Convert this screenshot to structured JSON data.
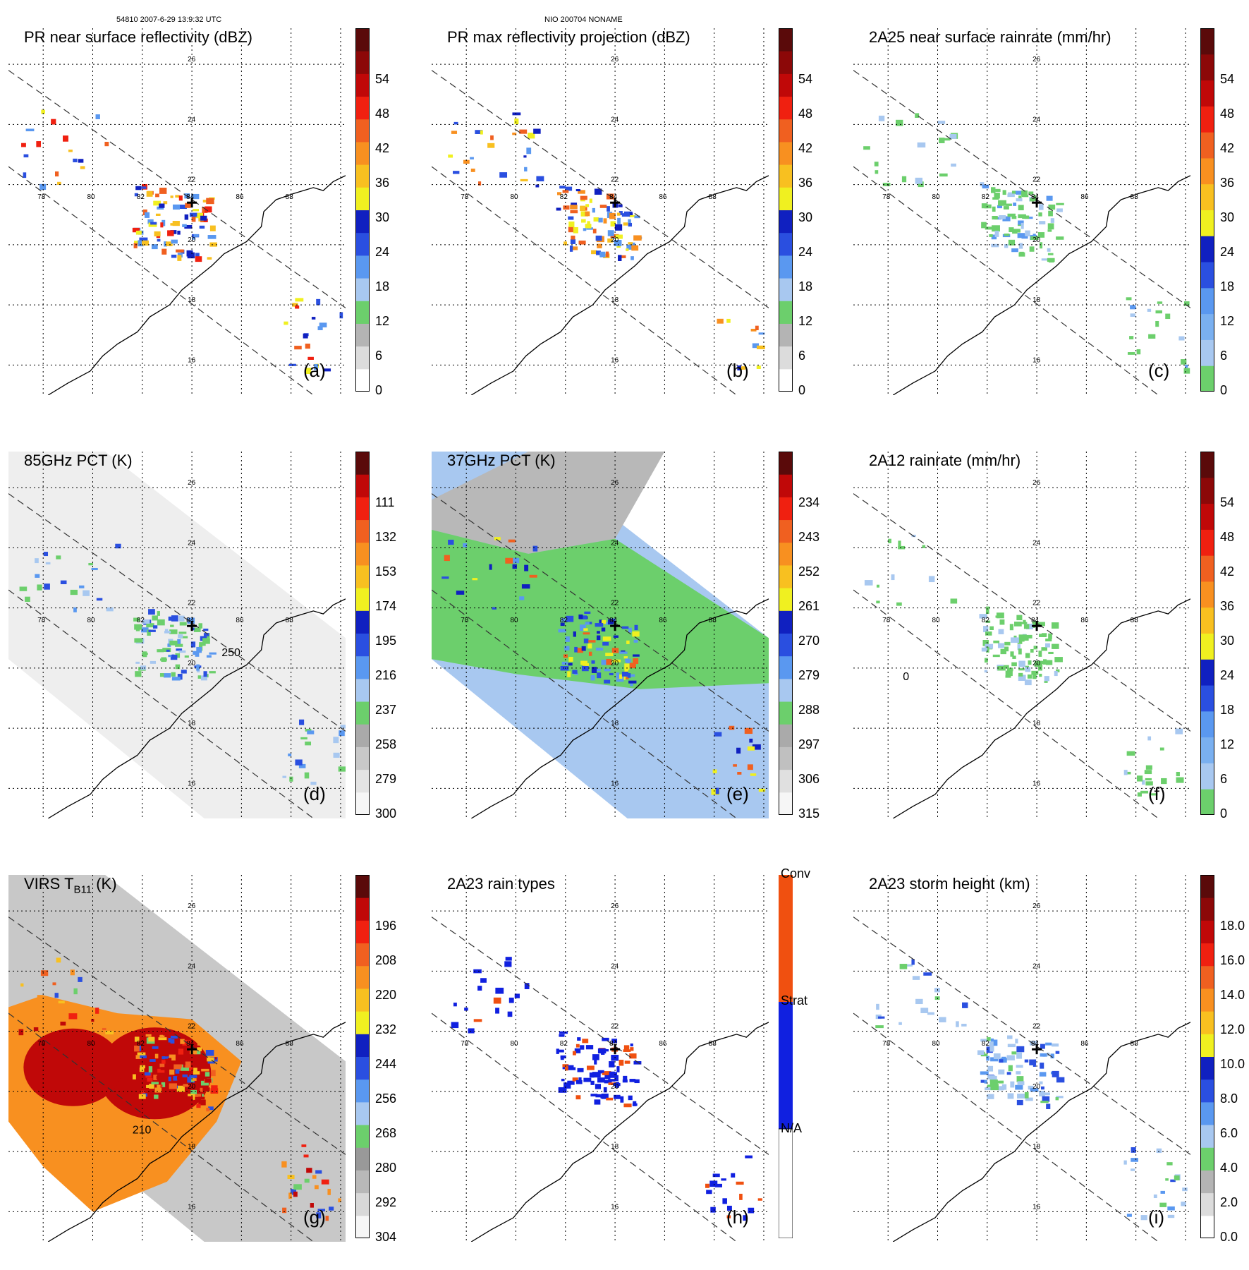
{
  "header": {
    "left": "54810 2007-6-29 13:9:32 UTC",
    "center": "NIO 200704 NONAME"
  },
  "chart_data": [
    {
      "id": "a",
      "type": "heatmap",
      "label": "(a)",
      "title": "PR near surface reflectivity (dBZ)",
      "lon_ticks": [
        "78",
        "80",
        "82",
        "84",
        "86",
        "88"
      ],
      "lat_ticks": [
        "26",
        "24",
        "22",
        "20",
        "18",
        "16"
      ],
      "colorbar": {
        "kind": "numeric",
        "ticks": [
          "0",
          "6",
          "12",
          "18",
          "24",
          "30",
          "36",
          "42",
          "48",
          "54"
        ],
        "range": [
          0,
          60
        ],
        "colors": [
          "#ffffff",
          "#dcdcdc",
          "#b4b4b4",
          "#6ccf6c",
          "#a8c8f0",
          "#5a98f0",
          "#2a4fe0",
          "#1020c0",
          "#f0f020",
          "#f8c020",
          "#f89020",
          "#f06020",
          "#f02010",
          "#c00808",
          "#8c0808",
          "#5a0a0a"
        ]
      },
      "cell_colors": [
        "#2a4fe0",
        "#5a98f0",
        "#f8c020",
        "#f0f020",
        "#f06020",
        "#1020c0",
        "#f02010"
      ]
    },
    {
      "id": "b",
      "type": "heatmap",
      "label": "(b)",
      "title": "PR max reflectivity projection (dBZ)",
      "lon_ticks": [
        "78",
        "80",
        "82",
        "84",
        "86",
        "88"
      ],
      "lat_ticks": [
        "26",
        "24",
        "22",
        "20",
        "18",
        "16"
      ],
      "colorbar": {
        "kind": "numeric",
        "ticks": [
          "0",
          "6",
          "12",
          "18",
          "24",
          "30",
          "36",
          "42",
          "48",
          "54"
        ],
        "range": [
          0,
          60
        ],
        "colors": [
          "#ffffff",
          "#dcdcdc",
          "#b4b4b4",
          "#6ccf6c",
          "#a8c8f0",
          "#5a98f0",
          "#2a4fe0",
          "#1020c0",
          "#f0f020",
          "#f8c020",
          "#f89020",
          "#f06020",
          "#f02010",
          "#c00808",
          "#8c0808",
          "#5a0a0a"
        ]
      },
      "cell_colors": [
        "#2a4fe0",
        "#f8c020",
        "#f89020",
        "#5a98f0",
        "#f0f020",
        "#f06020",
        "#1020c0"
      ]
    },
    {
      "id": "c",
      "type": "heatmap",
      "label": "(c)",
      "title": "2A25 near surface rainrate (mm/hr)",
      "lon_ticks": [
        "78",
        "80",
        "82",
        "84",
        "86",
        "88"
      ],
      "lat_ticks": [
        "26",
        "24",
        "22",
        "20",
        "18",
        "16"
      ],
      "colorbar": {
        "kind": "numeric",
        "ticks": [
          "0",
          "6",
          "12",
          "18",
          "24",
          "30",
          "36",
          "42",
          "48",
          "54"
        ],
        "range": [
          0,
          60
        ],
        "colors": [
          "#6ccf6c",
          "#a8c8f0",
          "#7ab0f0",
          "#5a98f0",
          "#2a4fe0",
          "#1020c0",
          "#f0f020",
          "#f8c020",
          "#f89020",
          "#f06020",
          "#f02010",
          "#c00808",
          "#8c0808",
          "#5a0a0a"
        ]
      },
      "cell_colors": [
        "#6ccf6c",
        "#6ccf6c",
        "#a8c8f0",
        "#6ccf6c",
        "#5a98f0"
      ]
    },
    {
      "id": "d",
      "type": "heatmap",
      "label": "(d)",
      "title": "85GHz PCT (K)",
      "contour_label": "250",
      "lon_ticks": [
        "78",
        "80",
        "82",
        "84",
        "86",
        "88"
      ],
      "lat_ticks": [
        "26",
        "24",
        "22",
        "20",
        "18",
        "16"
      ],
      "colorbar": {
        "kind": "numeric",
        "ticks": [
          "300",
          "279",
          "258",
          "237",
          "216",
          "195",
          "174",
          "153",
          "132",
          "111"
        ],
        "range": [
          300,
          90
        ],
        "colors": [
          "#f6f6f6",
          "#e4e4e4",
          "#c8c8c8",
          "#aaaaaa",
          "#6ccf6c",
          "#a8c8f0",
          "#5a98f0",
          "#2a4fe0",
          "#1020c0",
          "#f0f020",
          "#f8c020",
          "#f89020",
          "#f06020",
          "#f02010",
          "#c00808",
          "#5a0a0a"
        ]
      },
      "cell_colors": [
        "#6ccf6c",
        "#6ccf6c",
        "#a8c8f0",
        "#5a98f0",
        "#2a4fe0"
      ]
    },
    {
      "id": "e",
      "type": "heatmap",
      "label": "(e)",
      "title": "37GHz PCT (K)",
      "lon_ticks": [
        "78",
        "80",
        "82",
        "84",
        "86",
        "88"
      ],
      "lat_ticks": [
        "26",
        "24",
        "22",
        "20",
        "18",
        "16"
      ],
      "colorbar": {
        "kind": "numeric",
        "ticks": [
          "315",
          "306",
          "297",
          "288",
          "279",
          "270",
          "261",
          "252",
          "243",
          "234"
        ],
        "range": [
          315,
          225
        ],
        "colors": [
          "#f6f6f6",
          "#e0e0e0",
          "#c0c0c0",
          "#aaaaaa",
          "#6ccf6c",
          "#a8c8f0",
          "#5a98f0",
          "#2a4fe0",
          "#1020c0",
          "#f0f020",
          "#f8c020",
          "#f89020",
          "#f06020",
          "#f02010",
          "#c00808",
          "#5a0a0a"
        ]
      },
      "cell_colors": [
        "#1020c0",
        "#2a4fe0",
        "#5a98f0",
        "#f0f020",
        "#f06020"
      ]
    },
    {
      "id": "f",
      "type": "heatmap",
      "label": "(f)",
      "title": "2A12 rainrate (mm/hr)",
      "contour_label": "0",
      "lon_ticks": [
        "78",
        "80",
        "82",
        "84",
        "86",
        "88"
      ],
      "lat_ticks": [
        "26",
        "24",
        "22",
        "20",
        "18",
        "16"
      ],
      "colorbar": {
        "kind": "numeric",
        "ticks": [
          "0",
          "6",
          "12",
          "18",
          "24",
          "30",
          "36",
          "42",
          "48",
          "54"
        ],
        "range": [
          0,
          60
        ],
        "colors": [
          "#6ccf6c",
          "#a8c8f0",
          "#7ab0f0",
          "#5a98f0",
          "#2a4fe0",
          "#1020c0",
          "#f0f020",
          "#f8c020",
          "#f89020",
          "#f06020",
          "#f02010",
          "#c00808",
          "#8c0808",
          "#5a0a0a"
        ]
      },
      "cell_colors": [
        "#6ccf6c",
        "#6ccf6c",
        "#6ccf6c",
        "#a8c8f0"
      ]
    },
    {
      "id": "g",
      "type": "heatmap",
      "label": "(g)",
      "title": "VIRS T",
      "title_sub": "B11",
      "title_unit": " (K)",
      "contour_label": "210",
      "lon_ticks": [
        "78",
        "80",
        "82",
        "84",
        "86",
        "88"
      ],
      "lat_ticks": [
        "26",
        "24",
        "22",
        "20",
        "18",
        "16"
      ],
      "colorbar": {
        "kind": "numeric",
        "ticks": [
          "304",
          "292",
          "280",
          "268",
          "256",
          "244",
          "232",
          "220",
          "208",
          "196"
        ],
        "range": [
          304,
          184
        ],
        "colors": [
          "#f6f6f6",
          "#d8d8d8",
          "#b8b8b8",
          "#999999",
          "#6ccf6c",
          "#a8c8f0",
          "#5a98f0",
          "#2a4fe0",
          "#1020c0",
          "#f0f020",
          "#f8c020",
          "#f89020",
          "#f06020",
          "#f02010",
          "#c00808",
          "#5a0a0a"
        ]
      },
      "cell_colors": [
        "#f06020",
        "#f02010",
        "#c00808",
        "#f8c020",
        "#f89020",
        "#2a4fe0",
        "#6ccf6c"
      ]
    },
    {
      "id": "h",
      "type": "heatmap",
      "label": "(h)",
      "title": "2A23 rain types",
      "lon_ticks": [
        "78",
        "80",
        "82",
        "84",
        "86",
        "88"
      ],
      "lat_ticks": [
        "26",
        "24",
        "22",
        "20",
        "18",
        "16"
      ],
      "colorbar": {
        "kind": "categorical",
        "ticks": [
          "N/A",
          "Strat",
          "Conv"
        ],
        "colors": [
          "#ffffff",
          "#1020e0",
          "#f05010"
        ]
      },
      "cell_colors": [
        "#1020e0",
        "#1020e0",
        "#1020e0",
        "#f05010"
      ]
    },
    {
      "id": "i",
      "type": "heatmap",
      "label": "(i)",
      "title": "2A23 storm height (km)",
      "lon_ticks": [
        "78",
        "80",
        "82",
        "84",
        "86",
        "88"
      ],
      "lat_ticks": [
        "26",
        "24",
        "22",
        "20",
        "18",
        "16"
      ],
      "colorbar": {
        "kind": "numeric",
        "ticks": [
          "0.0",
          "2.0",
          "4.0",
          "6.0",
          "8.0",
          "10.0",
          "12.0",
          "14.0",
          "16.0",
          "18.0"
        ],
        "range": [
          0,
          20
        ],
        "colors": [
          "#ffffff",
          "#dcdcdc",
          "#b4b4b4",
          "#6ccf6c",
          "#a8c8f0",
          "#5a98f0",
          "#2a4fe0",
          "#1020c0",
          "#f0f020",
          "#f8c020",
          "#f89020",
          "#f06020",
          "#f02010",
          "#c00808",
          "#8c0808",
          "#5a0a0a"
        ]
      },
      "cell_colors": [
        "#a8c8f0",
        "#6ccf6c",
        "#5a98f0",
        "#a8c8f0",
        "#2a4fe0"
      ]
    }
  ]
}
